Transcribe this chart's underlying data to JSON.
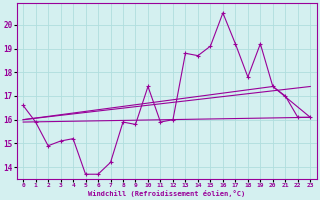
{
  "xlabel": "Windchill (Refroidissement éolien,°C)",
  "background_color": "#d4f0f0",
  "grid_color": "#b0dede",
  "line_color": "#990099",
  "x_ticks": [
    0,
    1,
    2,
    3,
    4,
    5,
    6,
    7,
    8,
    9,
    10,
    11,
    12,
    13,
    14,
    15,
    16,
    17,
    18,
    19,
    20,
    21,
    22,
    23
  ],
  "y_ticks": [
    14,
    15,
    16,
    17,
    18,
    19,
    20
  ],
  "ylim": [
    13.5,
    20.9
  ],
  "xlim": [
    -0.5,
    23.5
  ],
  "line1_x": [
    0,
    1,
    2,
    3,
    4,
    5,
    6,
    7,
    8,
    9,
    10,
    11,
    12,
    13,
    14,
    15,
    16,
    17,
    18,
    19,
    20,
    21,
    22,
    23
  ],
  "line1_y": [
    16.6,
    15.9,
    14.9,
    15.1,
    15.2,
    13.7,
    13.7,
    14.2,
    15.9,
    15.8,
    17.4,
    15.9,
    16.0,
    18.8,
    18.7,
    19.1,
    20.5,
    19.2,
    17.8,
    19.2,
    17.4,
    17.0,
    16.1,
    16.1
  ],
  "line2_x": [
    0,
    23
  ],
  "line2_y": [
    15.9,
    16.1
  ],
  "line3_x": [
    0,
    23
  ],
  "line3_y": [
    16.0,
    17.4
  ],
  "line4_x": [
    0,
    20,
    23
  ],
  "line4_y": [
    16.0,
    17.4,
    16.1
  ]
}
